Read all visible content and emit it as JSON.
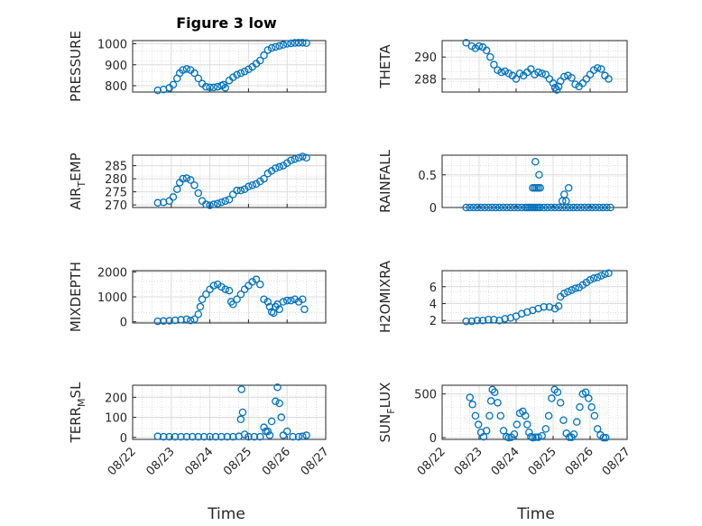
{
  "figure": {
    "title": "Figure 3 low",
    "xlabel": "Time",
    "marker_color": "#0072BD"
  },
  "chart_data": [
    {
      "type": "scatter",
      "ylabel": "PRESSURE",
      "xlim": [
        0,
        5
      ],
      "ylim": [
        770,
        1015
      ],
      "yticks": [
        800,
        900,
        1000
      ],
      "x": [
        0.65,
        0.8,
        0.95,
        1.05,
        1.15,
        1.22,
        1.3,
        1.4,
        1.5,
        1.6,
        1.7,
        1.8,
        1.9,
        2.0,
        2.1,
        2.2,
        2.3,
        2.35,
        2.4,
        2.5,
        2.6,
        2.7,
        2.8,
        2.9,
        3.0,
        3.1,
        3.2,
        3.3,
        3.4,
        3.5,
        3.6,
        3.7,
        3.8,
        3.9,
        4.0,
        4.1,
        4.2,
        4.3,
        4.4,
        4.5
      ],
      "y": [
        778,
        782,
        790,
        805,
        835,
        860,
        875,
        880,
        875,
        860,
        835,
        810,
        795,
        792,
        792,
        795,
        800,
        805,
        790,
        825,
        840,
        852,
        860,
        868,
        878,
        890,
        905,
        920,
        945,
        970,
        980,
        985,
        990,
        995,
        1000,
        1002,
        1004,
        1005,
        1005,
        1003
      ]
    },
    {
      "type": "scatter",
      "ylabel": "THETA",
      "xlim": [
        0,
        5
      ],
      "ylim": [
        286.8,
        291.5
      ],
      "yticks": [
        288,
        290
      ],
      "x": [
        0.65,
        0.8,
        0.9,
        1.0,
        1.1,
        1.2,
        1.3,
        1.4,
        1.5,
        1.6,
        1.7,
        1.8,
        1.9,
        2.0,
        2.1,
        2.2,
        2.3,
        2.4,
        2.5,
        2.6,
        2.7,
        2.8,
        2.9,
        3.0,
        3.05,
        3.1,
        3.15,
        3.2,
        3.3,
        3.4,
        3.5,
        3.6,
        3.7,
        3.8,
        3.9,
        4.0,
        4.1,
        4.2,
        4.3,
        4.4,
        4.5
      ],
      "y": [
        291.3,
        291.0,
        290.8,
        291.0,
        290.9,
        290.6,
        290.0,
        289.3,
        288.8,
        288.6,
        288.7,
        288.5,
        288.3,
        288.0,
        288.5,
        288.3,
        288.6,
        288.9,
        288.4,
        288.6,
        288.5,
        288.4,
        288.0,
        287.6,
        287.2,
        287.0,
        287.3,
        287.8,
        288.2,
        288.3,
        288.1,
        287.5,
        287.3,
        287.6,
        288.0,
        288.4,
        288.8,
        289.0,
        288.9,
        288.3,
        288.0
      ]
    },
    {
      "type": "scatter",
      "ylabel": "AIR_TEMP",
      "xlim": [
        0,
        5
      ],
      "ylim": [
        269,
        289
      ],
      "yticks": [
        270,
        275,
        280,
        285
      ],
      "x": [
        0.65,
        0.8,
        0.95,
        1.05,
        1.15,
        1.22,
        1.3,
        1.4,
        1.5,
        1.6,
        1.7,
        1.8,
        1.9,
        2.0,
        2.1,
        2.2,
        2.3,
        2.4,
        2.5,
        2.6,
        2.7,
        2.8,
        2.9,
        3.0,
        3.1,
        3.2,
        3.3,
        3.4,
        3.5,
        3.6,
        3.7,
        3.8,
        3.9,
        4.0,
        4.1,
        4.2,
        4.3,
        4.4,
        4.5
      ],
      "y": [
        270.8,
        271.0,
        271.5,
        273,
        276,
        278.5,
        280,
        280.2,
        279.5,
        277.5,
        274.5,
        271.5,
        270.2,
        269.8,
        270.2,
        270.5,
        271,
        271.5,
        272,
        274,
        275.5,
        275.5,
        276,
        277,
        277.5,
        278,
        279,
        280,
        282,
        283,
        284,
        284.5,
        285,
        286,
        287,
        287.5,
        288,
        288.5,
        288
      ]
    },
    {
      "type": "scatter",
      "ylabel": "RAINFALL",
      "xlim": [
        0,
        5
      ],
      "ylim": [
        0,
        0.8
      ],
      "yticks": [
        0,
        0.5
      ],
      "x": [
        0.65,
        0.75,
        0.85,
        0.95,
        1.05,
        1.15,
        1.25,
        1.35,
        1.45,
        1.55,
        1.65,
        1.75,
        1.85,
        1.95,
        2.05,
        2.15,
        2.25,
        2.3,
        2.35,
        2.4,
        2.45,
        2.5,
        2.55,
        2.6,
        2.65,
        2.45,
        2.5,
        2.55,
        2.6,
        2.65,
        2.75,
        2.85,
        2.95,
        3.05,
        3.15,
        3.25,
        3.35,
        3.45,
        3.55,
        3.65,
        3.75,
        3.85,
        3.95,
        4.05,
        4.15,
        4.25,
        4.35,
        4.45,
        4.55,
        2.52,
        2.62,
        3.25,
        3.35,
        3.3,
        3.42
      ],
      "y": [
        0,
        0,
        0,
        0,
        0,
        0,
        0,
        0,
        0,
        0,
        0,
        0,
        0,
        0,
        0,
        0,
        0,
        0,
        0,
        0,
        0,
        0,
        0,
        0,
        0,
        0.3,
        0.3,
        0.3,
        0.3,
        0.3,
        0,
        0,
        0,
        0,
        0,
        0,
        0,
        0,
        0,
        0,
        0,
        0,
        0,
        0,
        0,
        0,
        0,
        0,
        0,
        0.7,
        0.5,
        0.1,
        0.1,
        0.2,
        0.3
      ]
    },
    {
      "type": "scatter",
      "ylabel": "MIXDEPTH",
      "xlim": [
        0,
        5
      ],
      "ylim": [
        -50,
        2050
      ],
      "yticks": [
        0,
        1000,
        2000
      ],
      "x": [
        0.65,
        0.8,
        0.95,
        1.1,
        1.25,
        1.4,
        1.5,
        1.6,
        1.7,
        1.75,
        1.8,
        1.9,
        2.0,
        2.1,
        2.2,
        2.3,
        2.4,
        2.5,
        2.55,
        2.6,
        2.7,
        2.8,
        2.9,
        3.0,
        3.1,
        3.2,
        3.3,
        3.4,
        3.5,
        3.55,
        3.6,
        3.65,
        3.7,
        3.75,
        3.8,
        3.9,
        4.0,
        4.1,
        4.2,
        4.3,
        4.4,
        4.45
      ],
      "y": [
        20,
        30,
        40,
        60,
        80,
        100,
        50,
        100,
        300,
        600,
        900,
        1100,
        1300,
        1450,
        1500,
        1400,
        1300,
        1250,
        800,
        700,
        900,
        1100,
        1300,
        1450,
        1600,
        1700,
        1500,
        900,
        800,
        600,
        400,
        350,
        600,
        700,
        500,
        800,
        850,
        850,
        900,
        800,
        900,
        500
      ]
    },
    {
      "type": "scatter",
      "ylabel": "H2OMIXRA",
      "xlim": [
        0,
        5
      ],
      "ylim": [
        1.7,
        7.9
      ],
      "yticks": [
        2,
        4,
        6
      ],
      "x": [
        0.65,
        0.8,
        0.95,
        1.1,
        1.25,
        1.4,
        1.55,
        1.7,
        1.85,
        2.0,
        2.15,
        2.3,
        2.45,
        2.6,
        2.75,
        2.9,
        3.05,
        3.15,
        3.2,
        3.3,
        3.4,
        3.5,
        3.6,
        3.7,
        3.8,
        3.9,
        4.0,
        4.1,
        4.2,
        4.3,
        4.4,
        4.5
      ],
      "y": [
        1.9,
        1.9,
        2.0,
        2.0,
        2.1,
        2.1,
        2.0,
        2.2,
        2.3,
        2.5,
        2.8,
        3.0,
        3.2,
        3.4,
        3.6,
        3.6,
        3.4,
        3.7,
        4.8,
        5.2,
        5.4,
        5.6,
        5.8,
        5.9,
        6.2,
        6.5,
        6.8,
        7.0,
        7.1,
        7.3,
        7.5,
        7.6
      ]
    },
    {
      "type": "scatter",
      "ylabel": "TERR_MSL",
      "xlim": [
        0,
        5
      ],
      "ylim": [
        -10,
        260
      ],
      "yticks": [
        0,
        100,
        200
      ],
      "x": [
        0.65,
        0.8,
        0.95,
        1.1,
        1.25,
        1.4,
        1.55,
        1.7,
        1.85,
        2.0,
        2.15,
        2.3,
        2.45,
        2.6,
        2.75,
        2.8,
        2.82,
        2.85,
        2.9,
        3.0,
        3.15,
        3.3,
        3.4,
        3.45,
        3.5,
        3.55,
        3.6,
        3.7,
        3.75,
        3.8,
        3.85,
        3.9,
        4.0,
        4.15,
        4.3,
        4.4,
        4.5
      ],
      "y": [
        5,
        3,
        3,
        3,
        3,
        3,
        3,
        3,
        3,
        3,
        3,
        3,
        3,
        3,
        5,
        90,
        240,
        125,
        15,
        3,
        3,
        3,
        50,
        30,
        30,
        10,
        80,
        180,
        250,
        170,
        100,
        10,
        30,
        3,
        3,
        5,
        10
      ]
    },
    {
      "type": "scatter",
      "ylabel": "SUN_FLUX",
      "xlim": [
        0,
        5
      ],
      "ylim": [
        -20,
        600
      ],
      "yticks": [
        0,
        500
      ],
      "x": [
        0.75,
        0.82,
        0.9,
        0.98,
        1.05,
        1.12,
        1.2,
        1.28,
        1.32,
        1.36,
        1.42,
        1.5,
        1.58,
        1.66,
        1.74,
        1.8,
        1.87,
        1.95,
        2.02,
        2.1,
        2.18,
        2.25,
        2.3,
        2.35,
        2.4,
        2.45,
        2.52,
        2.6,
        2.7,
        2.8,
        2.88,
        2.96,
        3.04,
        3.12,
        3.2,
        3.28,
        3.36,
        3.44,
        3.5,
        3.56,
        3.64,
        3.72,
        3.8,
        3.88,
        3.96,
        4.04,
        4.12,
        4.2,
        4.28,
        4.36,
        4.42
      ],
      "y": [
        460,
        380,
        250,
        150,
        60,
        10,
        80,
        250,
        420,
        550,
        520,
        400,
        250,
        80,
        10,
        0,
        5,
        40,
        150,
        280,
        300,
        250,
        150,
        60,
        10,
        0,
        5,
        5,
        20,
        100,
        250,
        450,
        550,
        520,
        400,
        200,
        50,
        5,
        5,
        40,
        180,
        350,
        500,
        520,
        450,
        350,
        250,
        100,
        30,
        0,
        0
      ]
    }
  ],
  "x_ticklabels": [
    "08/22",
    "08/23",
    "08/24",
    "08/25",
    "08/26",
    "08/27"
  ]
}
